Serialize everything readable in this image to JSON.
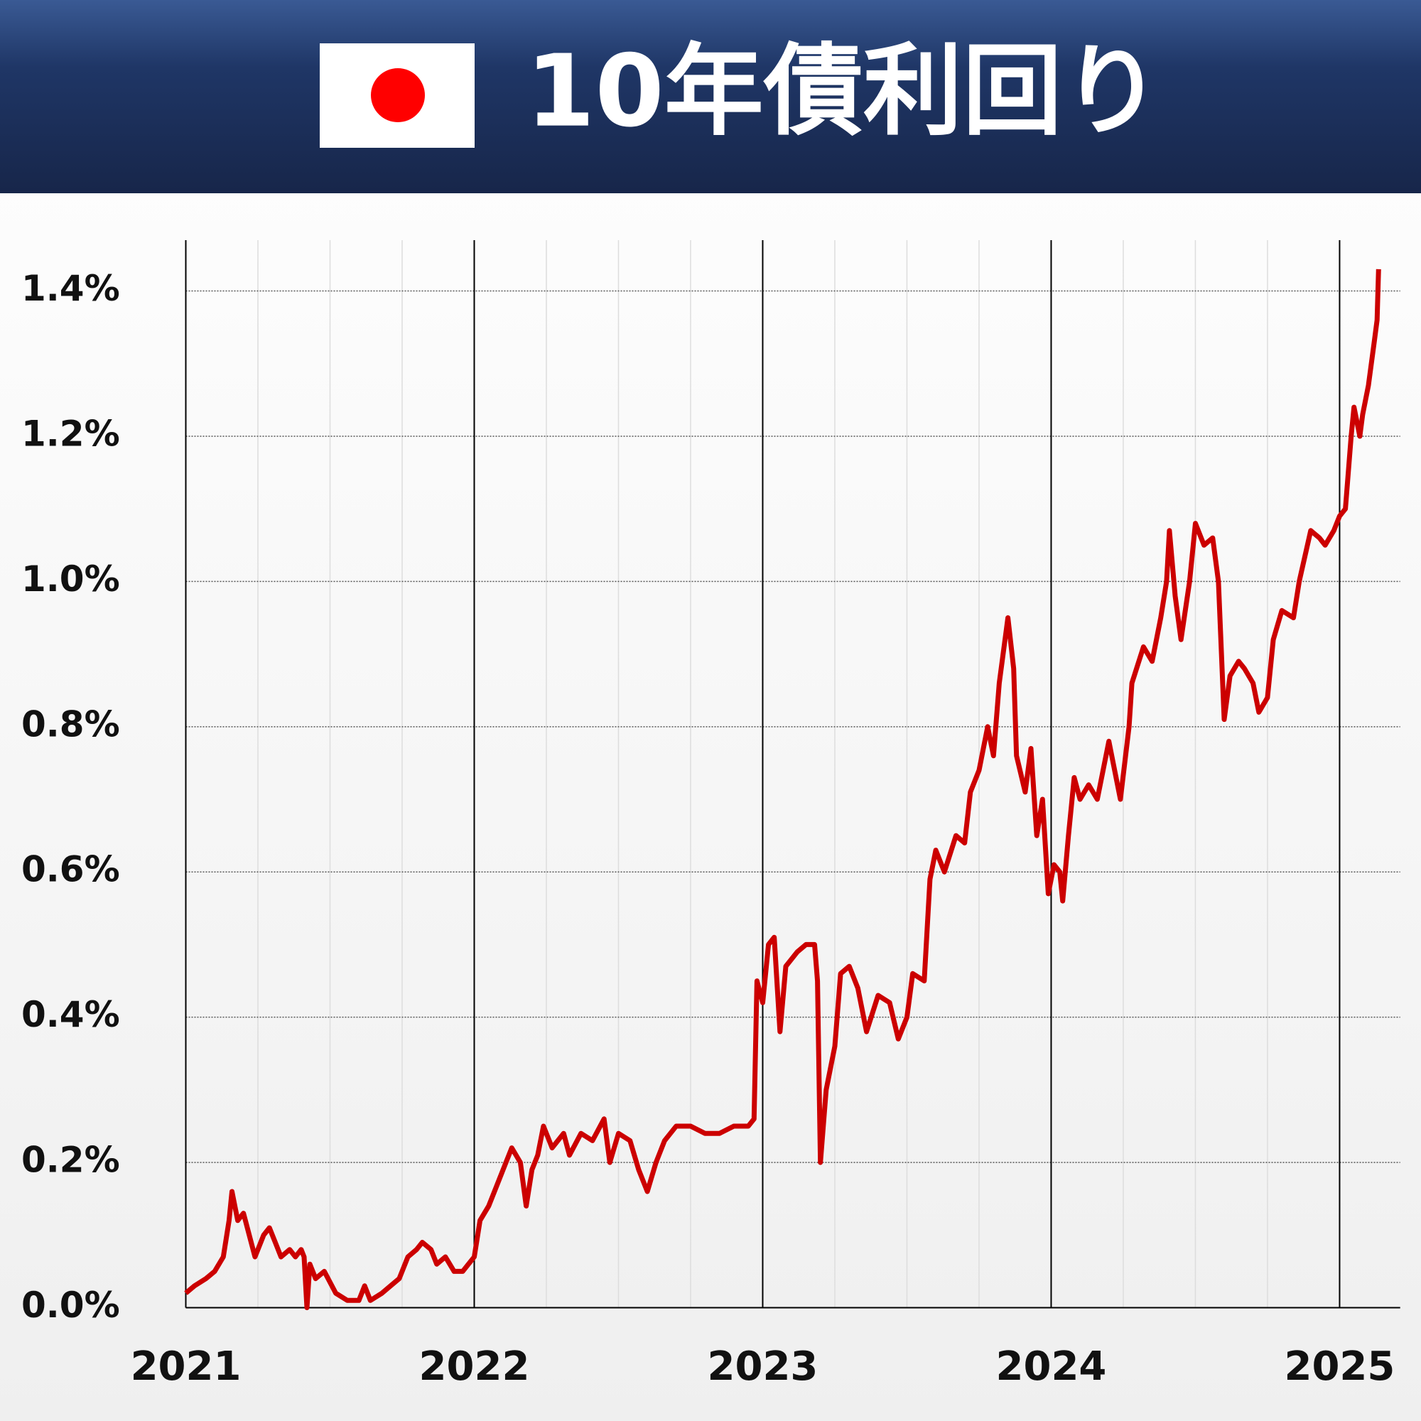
{
  "chart_data": {
    "type": "line",
    "title": "10年債利回り",
    "color": "#cc0000",
    "x": [
      2021.0,
      2021.03,
      2021.07,
      2021.1,
      2021.13,
      2021.15,
      2021.16,
      2021.18,
      2021.2,
      2021.22,
      2021.24,
      2021.27,
      2021.29,
      2021.31,
      2021.33,
      2021.36,
      2021.38,
      2021.4,
      2021.41,
      2021.42,
      2021.43,
      2021.45,
      2021.48,
      2021.52,
      2021.56,
      2021.6,
      2021.62,
      2021.64,
      2021.68,
      2021.71,
      2021.74,
      2021.77,
      2021.8,
      2021.82,
      2021.85,
      2021.87,
      2021.9,
      2021.93,
      2021.96,
      2022.0,
      2022.02,
      2022.05,
      2022.08,
      2022.11,
      2022.13,
      2022.16,
      2022.18,
      2022.2,
      2022.22,
      2022.24,
      2022.27,
      2022.31,
      2022.33,
      2022.37,
      2022.41,
      2022.45,
      2022.47,
      2022.5,
      2022.54,
      2022.57,
      2022.6,
      2022.63,
      2022.66,
      2022.7,
      2022.75,
      2022.8,
      2022.85,
      2022.9,
      2022.95,
      2022.97,
      2022.98,
      2023.0,
      2023.02,
      2023.04,
      2023.06,
      2023.08,
      2023.12,
      2023.15,
      2023.18,
      2023.19,
      2023.2,
      2023.22,
      2023.25,
      2023.27,
      2023.3,
      2023.33,
      2023.36,
      2023.4,
      2023.44,
      2023.47,
      2023.5,
      2023.52,
      2023.56,
      2023.58,
      2023.6,
      2023.63,
      2023.67,
      2023.7,
      2023.72,
      2023.75,
      2023.78,
      2023.8,
      2023.82,
      2023.85,
      2023.87,
      2023.88,
      2023.91,
      2023.93,
      2023.95,
      2023.97,
      2023.99,
      2024.01,
      2024.03,
      2024.04,
      2024.06,
      2024.08,
      2024.1,
      2024.13,
      2024.16,
      2024.2,
      2024.24,
      2024.27,
      2024.28,
      2024.32,
      2024.35,
      2024.38,
      2024.4,
      2024.41,
      2024.43,
      2024.45,
      2024.48,
      2024.5,
      2024.53,
      2024.56,
      2024.58,
      2024.6,
      2024.62,
      2024.65,
      2024.67,
      2024.7,
      2024.72,
      2024.75,
      2024.77,
      2024.8,
      2024.84,
      2024.86,
      2024.9,
      2024.93,
      2024.95,
      2024.98,
      2025.0,
      2025.02,
      2025.04,
      2025.05,
      2025.07,
      2025.08,
      2025.1,
      2025.12,
      2025.13,
      2025.135
    ],
    "values": [
      0.02,
      0.03,
      0.04,
      0.05,
      0.07,
      0.12,
      0.16,
      0.12,
      0.13,
      0.1,
      0.07,
      0.1,
      0.11,
      0.09,
      0.07,
      0.08,
      0.07,
      0.08,
      0.07,
      0.0,
      0.06,
      0.04,
      0.05,
      0.02,
      0.01,
      0.01,
      0.03,
      0.01,
      0.02,
      0.03,
      0.04,
      0.07,
      0.08,
      0.09,
      0.08,
      0.06,
      0.07,
      0.05,
      0.05,
      0.07,
      0.12,
      0.14,
      0.17,
      0.2,
      0.22,
      0.2,
      0.14,
      0.19,
      0.21,
      0.25,
      0.22,
      0.24,
      0.21,
      0.24,
      0.23,
      0.26,
      0.2,
      0.24,
      0.23,
      0.19,
      0.16,
      0.2,
      0.23,
      0.25,
      0.25,
      0.24,
      0.24,
      0.25,
      0.25,
      0.26,
      0.45,
      0.42,
      0.5,
      0.51,
      0.38,
      0.47,
      0.49,
      0.5,
      0.5,
      0.45,
      0.2,
      0.3,
      0.36,
      0.46,
      0.47,
      0.44,
      0.38,
      0.43,
      0.42,
      0.37,
      0.4,
      0.46,
      0.45,
      0.59,
      0.63,
      0.6,
      0.65,
      0.64,
      0.71,
      0.74,
      0.8,
      0.76,
      0.86,
      0.95,
      0.88,
      0.76,
      0.71,
      0.77,
      0.65,
      0.7,
      0.57,
      0.61,
      0.6,
      0.56,
      0.65,
      0.73,
      0.7,
      0.72,
      0.7,
      0.78,
      0.7,
      0.8,
      0.86,
      0.91,
      0.89,
      0.95,
      1.0,
      1.07,
      0.98,
      0.92,
      1.0,
      1.08,
      1.05,
      1.06,
      1.0,
      0.81,
      0.87,
      0.89,
      0.88,
      0.86,
      0.82,
      0.84,
      0.92,
      0.96,
      0.95,
      1.0,
      1.07,
      1.06,
      1.05,
      1.07,
      1.09,
      1.1,
      1.2,
      1.24,
      1.2,
      1.23,
      1.27,
      1.33,
      1.36,
      1.43
    ],
    "xlim": [
      2021,
      2025.21
    ],
    "xticks": [
      2021,
      2022,
      2023,
      2024,
      2025
    ],
    "ylim": [
      0,
      1.47
    ],
    "yticks": [
      {
        "value": 0,
        "label": "0.0%"
      },
      {
        "value": 0.2,
        "label": "0.2%"
      },
      {
        "value": 0.4,
        "label": "0.4%"
      },
      {
        "value": 0.6,
        "label": "0.6%"
      },
      {
        "value": 0.8,
        "label": "0.8%"
      },
      {
        "value": 1.0,
        "label": "1.0%"
      },
      {
        "value": 1.2,
        "label": "1.2%"
      },
      {
        "value": 1.4,
        "label": "1.4%"
      }
    ],
    "grid": true
  }
}
